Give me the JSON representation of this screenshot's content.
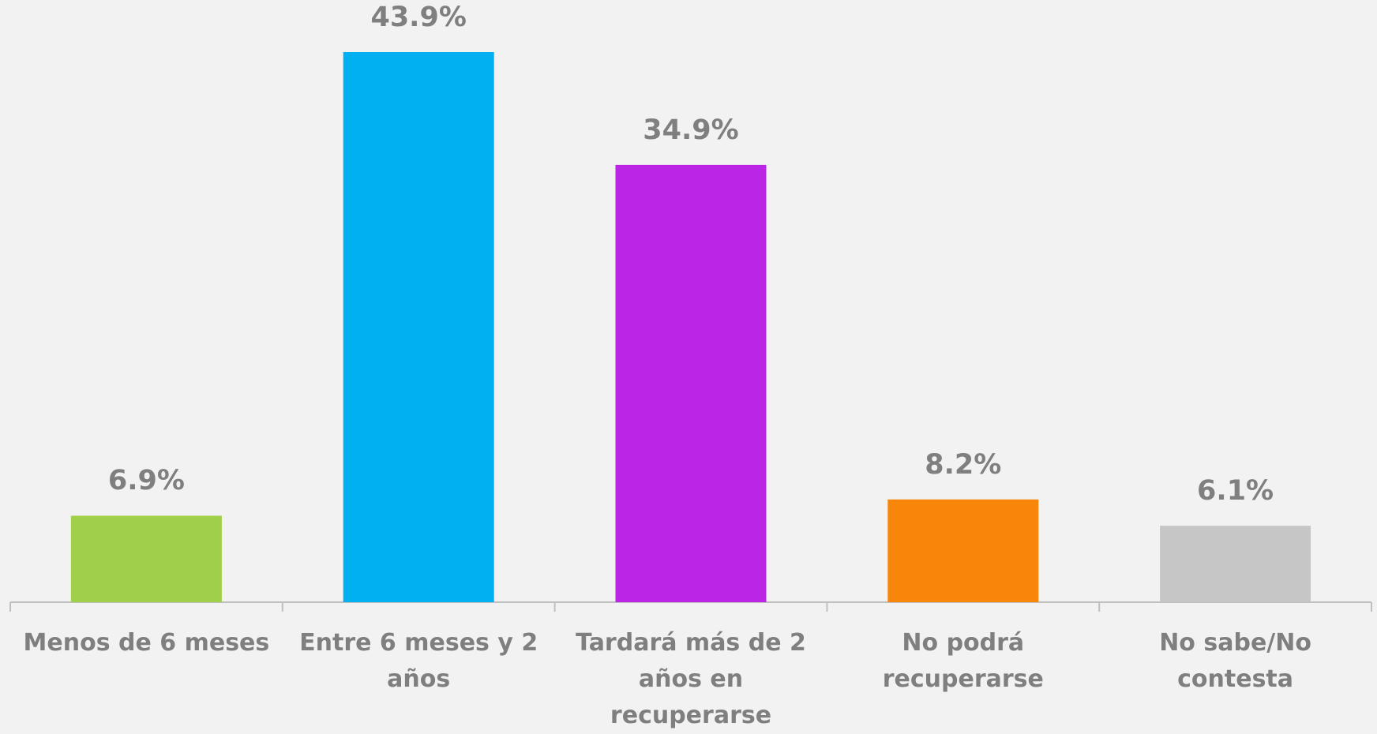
{
  "chart_data": {
    "type": "bar",
    "categories": [
      "Menos de 6 meses",
      "Entre 6 meses y 2 años",
      "Tardará más de 2 años en recuperarse",
      "No podrá recuperarse",
      "No sabe/No contesta"
    ],
    "values": [
      6.9,
      43.9,
      34.9,
      8.2,
      6.1
    ],
    "value_labels": [
      "6.9%",
      "43.9%",
      "34.9%",
      "8.2%",
      "6.1%"
    ],
    "colors": [
      "#a0d04a",
      "#00b0f0",
      "#bb25e5",
      "#f7860b",
      "#c6c6c6"
    ]
  }
}
